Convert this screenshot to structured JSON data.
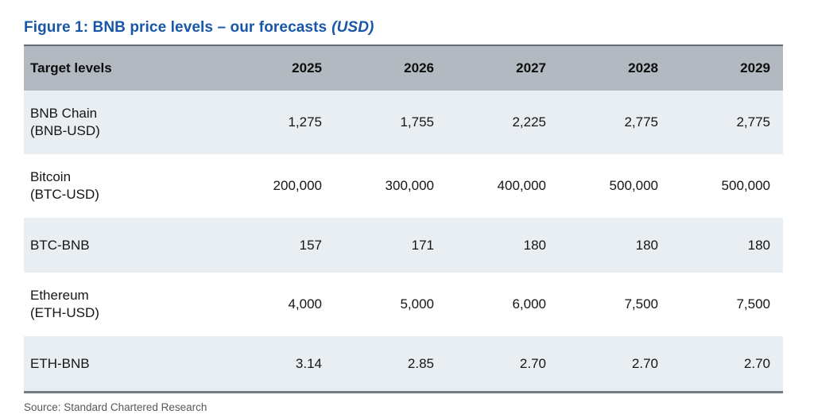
{
  "figure": {
    "title_main": "Figure 1: BNB price levels – our forecasts",
    "title_note": "(USD)",
    "source": "Source: Standard Chartered Research"
  },
  "table": {
    "columns": [
      "Target levels",
      "2025",
      "2026",
      "2027",
      "2028",
      "2029"
    ],
    "rows": [
      {
        "label_line1": "BNB Chain",
        "label_line2": "(BNB-USD)",
        "values": [
          "1,275",
          "1,755",
          "2,225",
          "2,775",
          "2,775"
        ]
      },
      {
        "label_line1": "Bitcoin",
        "label_line2": "(BTC-USD)",
        "values": [
          "200,000",
          "300,000",
          "400,000",
          "500,000",
          "500,000"
        ]
      },
      {
        "label_line1": "BTC-BNB",
        "label_line2": "",
        "values": [
          "157",
          "171",
          "180",
          "180",
          "180"
        ]
      },
      {
        "label_line1": "Ethereum",
        "label_line2": "(ETH-USD)",
        "values": [
          "4,000",
          "5,000",
          "6,000",
          "7,500",
          "7,500"
        ]
      },
      {
        "label_line1": "ETH-BNB",
        "label_line2": "",
        "values": [
          "3.14",
          "2.85",
          "2.70",
          "2.70",
          "2.70"
        ]
      }
    ]
  },
  "colors": {
    "title_blue": "#1857a6",
    "header_bg": "#b3b9c0",
    "header_top_border": "#626b74",
    "row_shade": "#e9eef3",
    "row_plain": "#ffffff",
    "bottom_border": "#737b83",
    "source_text": "#53585c"
  },
  "chart_data": {
    "type": "table",
    "title": "Figure 1: BNB price levels – our forecasts (USD)",
    "columns": [
      "Target levels",
      "2025",
      "2026",
      "2027",
      "2028",
      "2029"
    ],
    "rows": [
      [
        "BNB Chain (BNB-USD)",
        1275,
        1755,
        2225,
        2775,
        2775
      ],
      [
        "Bitcoin (BTC-USD)",
        200000,
        300000,
        400000,
        500000,
        500000
      ],
      [
        "BTC-BNB",
        157,
        171,
        180,
        180,
        180
      ],
      [
        "Ethereum (ETH-USD)",
        4000,
        5000,
        6000,
        7500,
        7500
      ],
      [
        "ETH-BNB",
        3.14,
        2.85,
        2.7,
        2.7,
        2.7
      ]
    ],
    "source": "Source: Standard Chartered Research"
  }
}
